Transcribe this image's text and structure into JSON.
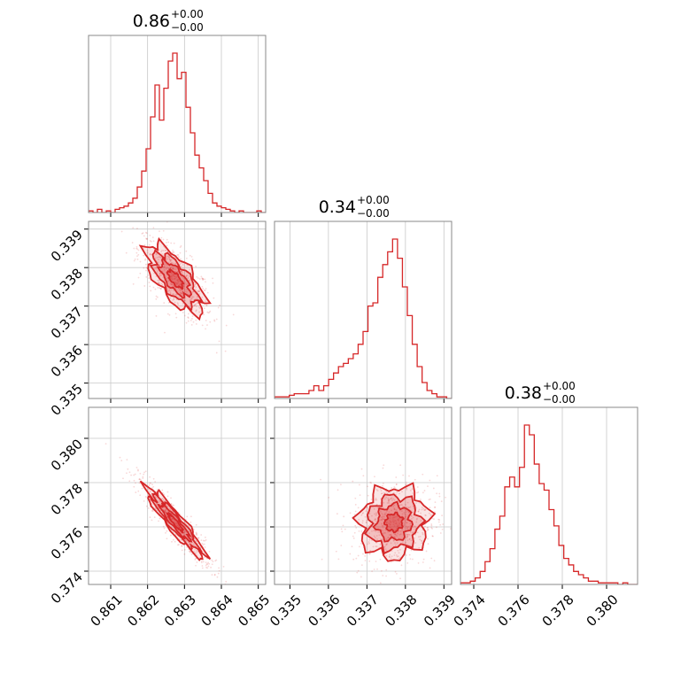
{
  "figure": {
    "type": "corner-plot",
    "accent_color": "#d62728",
    "params": [
      {
        "title_main": "0.86",
        "title_up": "+0.00",
        "title_low": "−0.00",
        "median": 0.86275,
        "sigma": 0.0004,
        "range": [
          0.8604,
          0.8652
        ],
        "ticks": [
          0.861,
          0.862,
          0.863,
          0.864,
          0.865
        ],
        "tick_labels": [
          "0.861",
          "0.862",
          "0.863",
          "0.864",
          "0.865"
        ],
        "hist": [
          1,
          0,
          2,
          0,
          1,
          0,
          2,
          3,
          4,
          6,
          9,
          16,
          26,
          40,
          60,
          80,
          58,
          78,
          95,
          100,
          84,
          88,
          66,
          50,
          36,
          28,
          20,
          12,
          6,
          4,
          3,
          2,
          1,
          0,
          1,
          0,
          0,
          0,
          1,
          0
        ]
      },
      {
        "title_main": "0.34",
        "title_up": "+0.00",
        "title_low": "−0.00",
        "median": 0.3377,
        "sigma": 0.00045,
        "range": [
          0.3346,
          0.3392
        ],
        "ticks": [
          0.335,
          0.336,
          0.337,
          0.338,
          0.339
        ],
        "tick_labels": [
          "0.335",
          "0.336",
          "0.337",
          "0.338",
          "0.339"
        ],
        "hist": [
          1,
          1,
          1,
          2,
          3,
          3,
          3,
          5,
          8,
          5,
          8,
          12,
          16,
          20,
          22,
          25,
          28,
          34,
          42,
          58,
          60,
          76,
          84,
          92,
          100,
          88,
          70,
          52,
          34,
          20,
          10,
          5,
          3,
          1,
          1,
          0
        ]
      },
      {
        "title_main": "0.38",
        "title_up": "+0.00",
        "title_low": "−0.00",
        "median": 0.3762,
        "sigma": 0.0008,
        "range": [
          0.3734,
          0.3814
        ],
        "ticks": [
          0.374,
          0.376,
          0.378,
          0.38
        ],
        "tick_labels": [
          "0.374",
          "0.376",
          "0.378",
          "0.380"
        ],
        "hist": [
          1,
          1,
          2,
          4,
          8,
          14,
          22,
          34,
          42,
          60,
          66,
          60,
          72,
          98,
          92,
          74,
          62,
          58,
          46,
          36,
          24,
          16,
          12,
          8,
          6,
          4,
          2,
          2,
          1,
          1,
          1,
          1,
          0,
          1,
          0,
          0
        ]
      }
    ],
    "pairs": [
      {
        "row": 1,
        "col": 0,
        "correlation": -0.7
      },
      {
        "row": 2,
        "col": 0,
        "correlation": -0.93
      },
      {
        "row": 2,
        "col": 1,
        "correlation": 0.05
      }
    ]
  }
}
